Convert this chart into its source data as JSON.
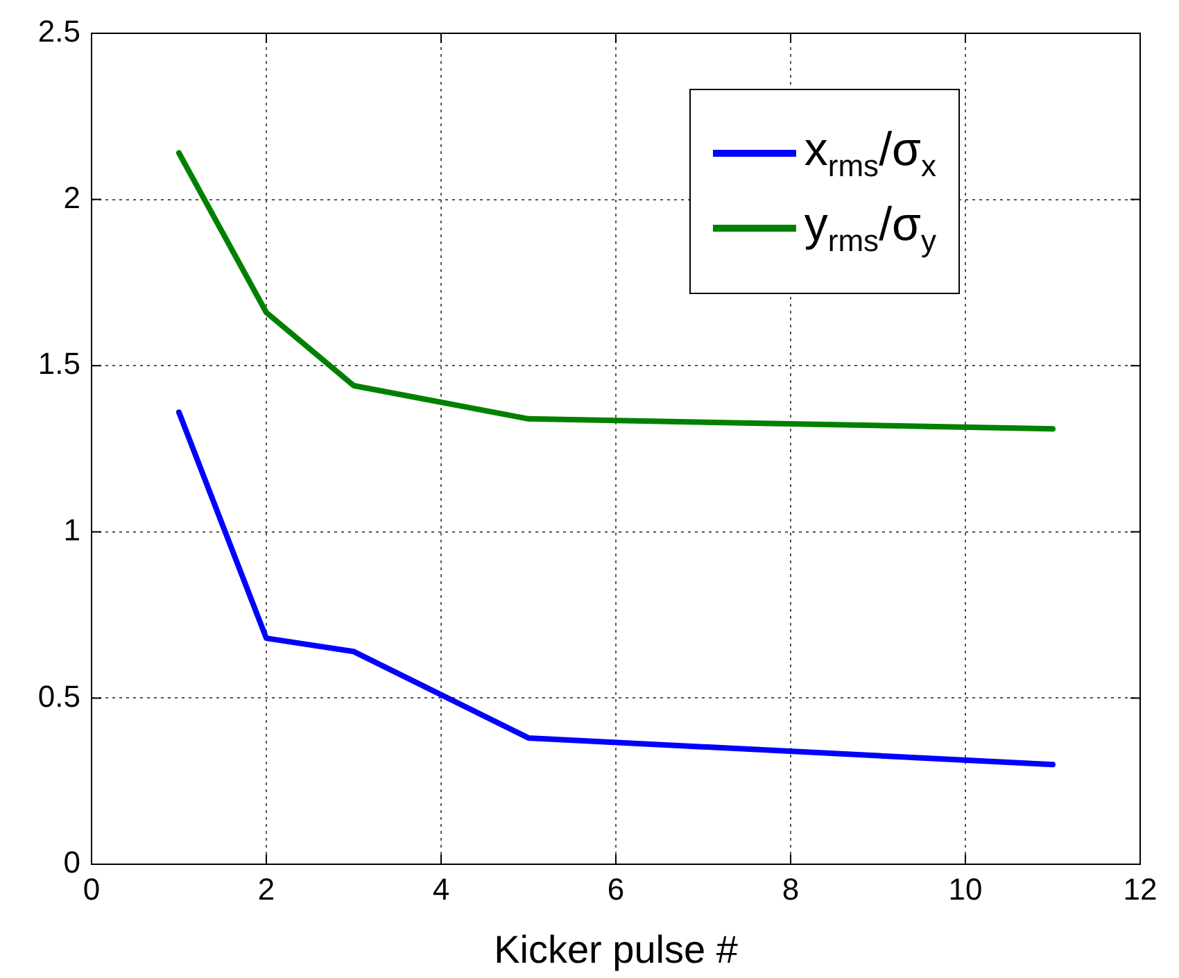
{
  "chart_data": {
    "type": "line",
    "xlabel": "Kicker pulse #",
    "xlim": [
      0,
      12
    ],
    "xticks": [
      0,
      2,
      4,
      6,
      8,
      10,
      12
    ],
    "ylim": [
      0,
      2.5
    ],
    "yticks": [
      0,
      0.5,
      1,
      1.5,
      2,
      2.5
    ],
    "grid": true,
    "legend": "top right",
    "marker": "none",
    "line_style": "solid",
    "series": [
      {
        "name": "x$_{rms}$/σ$_{x}$",
        "color": "#0000ff",
        "x": [
          1,
          2,
          3,
          5,
          11
        ],
        "values": [
          1.36,
          0.68,
          0.64,
          0.38,
          0.3
        ]
      },
      {
        "name": "y$_{rms}$/σ$_{y}$",
        "color": "#008000",
        "x": [
          1,
          2,
          3,
          5,
          11
        ],
        "values": [
          2.14,
          1.66,
          1.44,
          1.34,
          1.31
        ]
      }
    ]
  }
}
